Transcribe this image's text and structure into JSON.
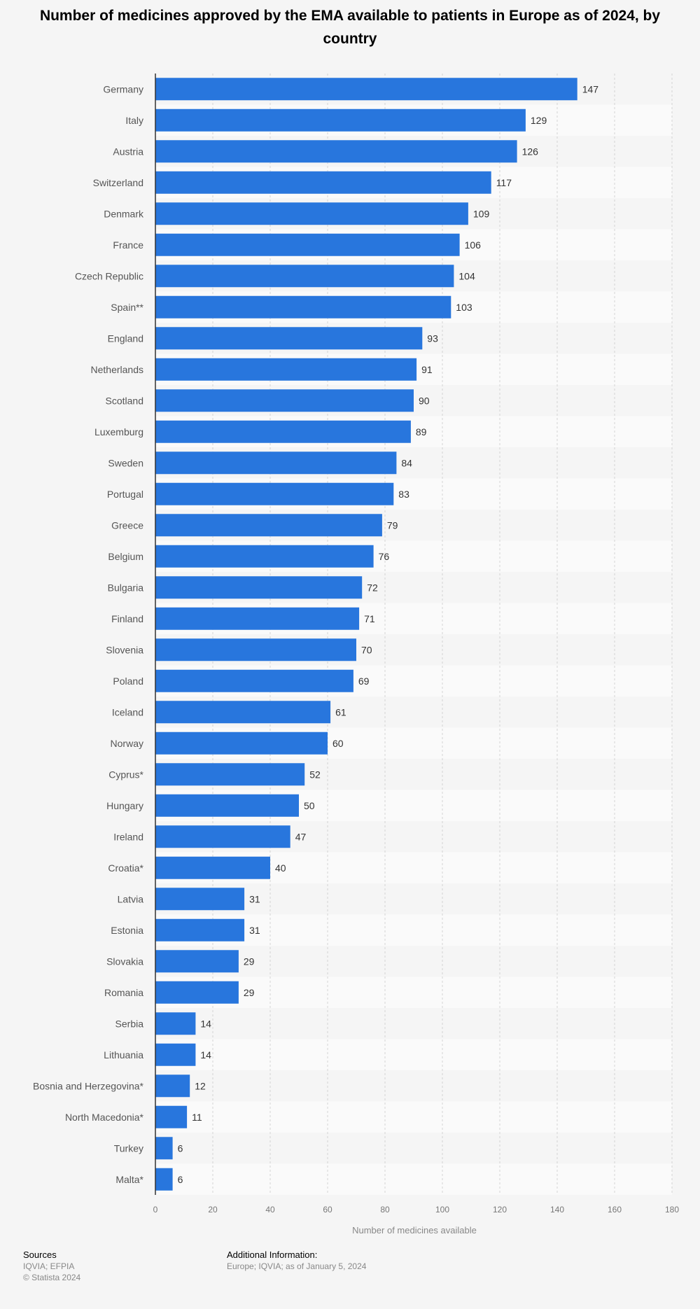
{
  "chart_data": {
    "type": "bar",
    "orientation": "horizontal",
    "title": "Number of medicines approved by the EMA available to patients in Europe as of 2024, by country",
    "xlabel": "Number of medicines available",
    "ylabel": "",
    "xlim": [
      0,
      180
    ],
    "xticks": [
      0,
      20,
      40,
      60,
      80,
      100,
      120,
      140,
      160,
      180
    ],
    "grid": true,
    "bar_color": "#2876dd",
    "categories": [
      "Germany",
      "Italy",
      "Austria",
      "Switzerland",
      "Denmark",
      "France",
      "Czech Republic",
      "Spain**",
      "England",
      "Netherlands",
      "Scotland",
      "Luxemburg",
      "Sweden",
      "Portugal",
      "Greece",
      "Belgium",
      "Bulgaria",
      "Finland",
      "Slovenia",
      "Poland",
      "Iceland",
      "Norway",
      "Cyprus*",
      "Hungary",
      "Ireland",
      "Croatia*",
      "Latvia",
      "Estonia",
      "Slovakia",
      "Romania",
      "Serbia",
      "Lithuania",
      "Bosnia and Herzegovina*",
      "North Macedonia*",
      "Turkey",
      "Malta*"
    ],
    "values": [
      147,
      129,
      126,
      117,
      109,
      106,
      104,
      103,
      93,
      91,
      90,
      89,
      84,
      83,
      79,
      76,
      72,
      71,
      70,
      69,
      61,
      60,
      52,
      50,
      47,
      40,
      31,
      31,
      29,
      29,
      14,
      14,
      12,
      11,
      6,
      6
    ]
  },
  "footer": {
    "sources_heading": "Sources",
    "sources_text": "IQVIA; EFPIA",
    "copyright": "© Statista 2024",
    "additional_heading": "Additional Information:",
    "additional_text": "Europe; IQVIA; as of January 5, 2024"
  }
}
